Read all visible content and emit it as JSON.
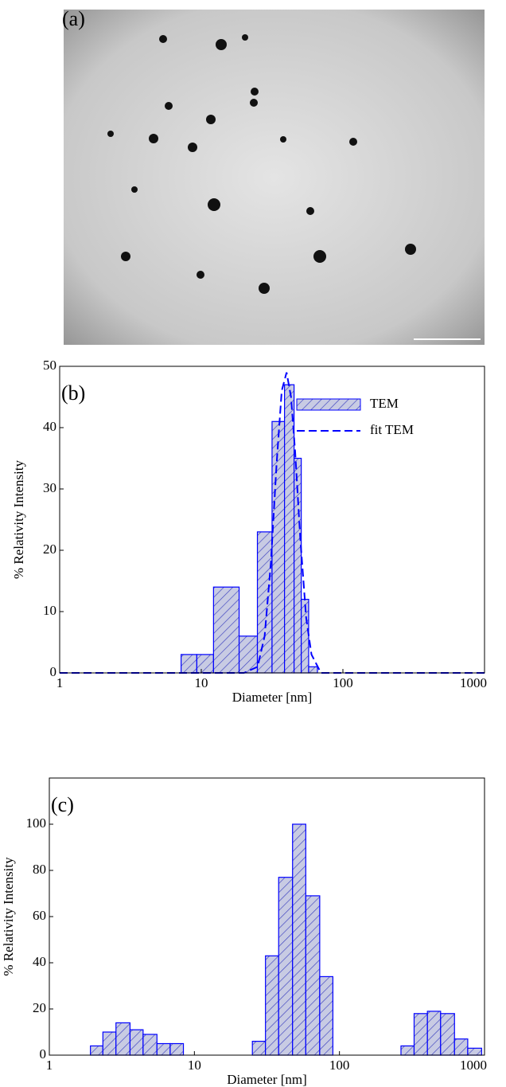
{
  "chart_data": [
    {
      "type": "image",
      "panel_label": "(a)"
    },
    {
      "type": "histogram",
      "panel_label": "(b)",
      "xlabel": "Diameter [nm]",
      "ylabel": "% Relativity Intensity",
      "log_x": true,
      "xlim": [
        1,
        1000
      ],
      "xticks": [
        1,
        10,
        100,
        1000
      ],
      "ylim": [
        0,
        50
      ],
      "yticks": [
        0,
        10,
        20,
        30,
        40,
        50
      ],
      "legend": "upper right",
      "bins": [
        7.2,
        9.3,
        12.2,
        18.5,
        24.9,
        31.6,
        38.7,
        45.2,
        50.8,
        57.3,
        66.1
      ],
      "series": [
        {
          "name": "TEM",
          "color": "#0000ff",
          "fill": "#c8cbe3",
          "values": [
            3,
            3,
            14,
            6,
            23,
            41,
            47,
            35,
            12,
            1
          ]
        }
      ],
      "lines": [
        {
          "name": "fit TEM",
          "color": "#0000ff",
          "dash": true,
          "x": [
            1,
            10,
            20,
            25,
            28,
            31,
            34,
            37,
            40,
            43,
            46,
            50,
            55,
            60,
            70,
            100,
            1000
          ],
          "y": [
            0,
            0,
            0,
            1,
            6,
            18,
            34,
            46,
            49,
            45,
            36,
            22,
            9,
            3,
            0,
            0,
            0
          ]
        }
      ]
    },
    {
      "type": "histogram",
      "panel_label": "(c)",
      "xlabel": "Diameter [nm]",
      "ylabel": "% Relativity Intensity",
      "log_x": true,
      "xlim": [
        1,
        1000
      ],
      "xticks": [
        1,
        10,
        100,
        1000
      ],
      "ylim": [
        0,
        120
      ],
      "yticks": [
        0,
        20,
        40,
        60,
        80,
        100
      ],
      "bins": [
        1.92,
        2.34,
        2.88,
        3.6,
        4.43,
        5.52,
        6.81,
        8.4,
        25.1,
        30.9,
        38.1,
        47.5,
        58.6,
        73.1,
        90.1,
        265.5,
        327,
        404,
        498,
        621,
        766,
        955
      ],
      "color": "#0000ff",
      "fill": "#c8cbe3",
      "values": [
        4,
        10,
        14,
        11,
        9,
        5,
        5,
        0,
        6,
        43,
        77,
        100,
        69,
        34,
        0,
        4,
        18,
        19,
        18,
        7,
        3
      ]
    }
  ]
}
